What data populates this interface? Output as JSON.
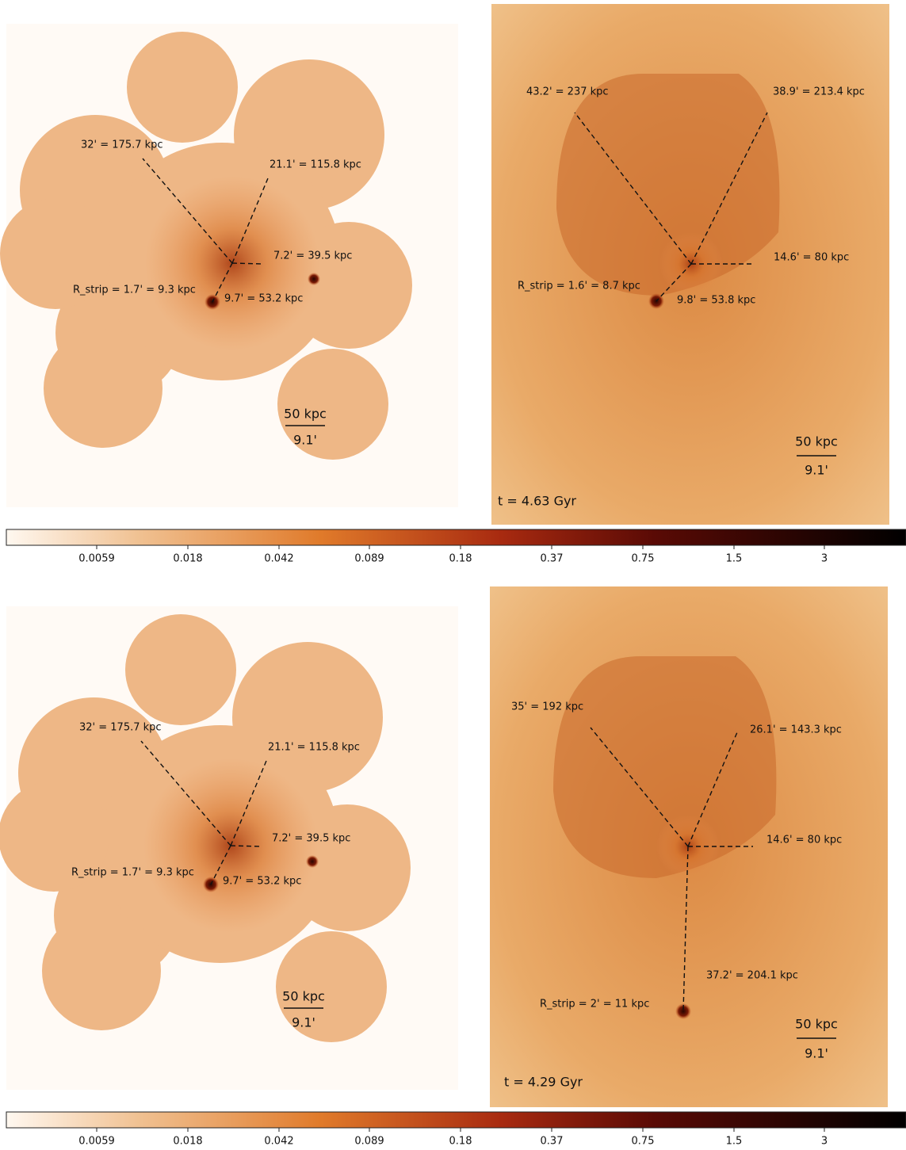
{
  "panels": [
    {
      "observed": {
        "annotations": [
          "32' = 175.7 kpc",
          "21.1' = 115.8 kpc",
          "7.2' = 39.5 kpc",
          "R_strip = 1.7' = 9.3 kpc",
          "9.7' = 53.2 kpc"
        ],
        "scale": {
          "length": "50 kpc",
          "angle": "9.1'"
        }
      },
      "simulated": {
        "annotations": [
          "43.2' = 237 kpc",
          "38.9' = 213.4 kpc",
          "14.6' = 80 kpc",
          "R_strip = 1.6' = 8.7 kpc",
          "9.8' = 53.8 kpc"
        ],
        "time": "t = 4.63 Gyr",
        "scale": {
          "length": "50 kpc",
          "angle": "9.1'"
        }
      },
      "colorbar": {
        "ticks": [
          "0.0059",
          "0.018",
          "0.042",
          "0.089",
          "0.18",
          "0.37",
          "0.75",
          "1.5",
          "3"
        ]
      }
    },
    {
      "observed": {
        "annotations": [
          "32' = 175.7 kpc",
          "21.1' = 115.8 kpc",
          "7.2' = 39.5 kpc",
          "R_strip = 1.7' = 9.3 kpc",
          "9.7' = 53.2 kpc"
        ],
        "scale": {
          "length": "50 kpc",
          "angle": "9.1'"
        }
      },
      "simulated": {
        "annotations": [
          "35' = 192 kpc",
          "26.1' = 143.3 kpc",
          "14.6' = 80 kpc",
          "37.2' = 204.1 kpc",
          "R_strip = 2' = 11 kpc"
        ],
        "time": "t = 4.29 Gyr",
        "scale": {
          "length": "50 kpc",
          "angle": "9.1'"
        }
      },
      "colorbar": {
        "ticks": [
          "0.0059",
          "0.018",
          "0.042",
          "0.089",
          "0.18",
          "0.37",
          "0.75",
          "1.5",
          "3"
        ]
      }
    }
  ]
}
